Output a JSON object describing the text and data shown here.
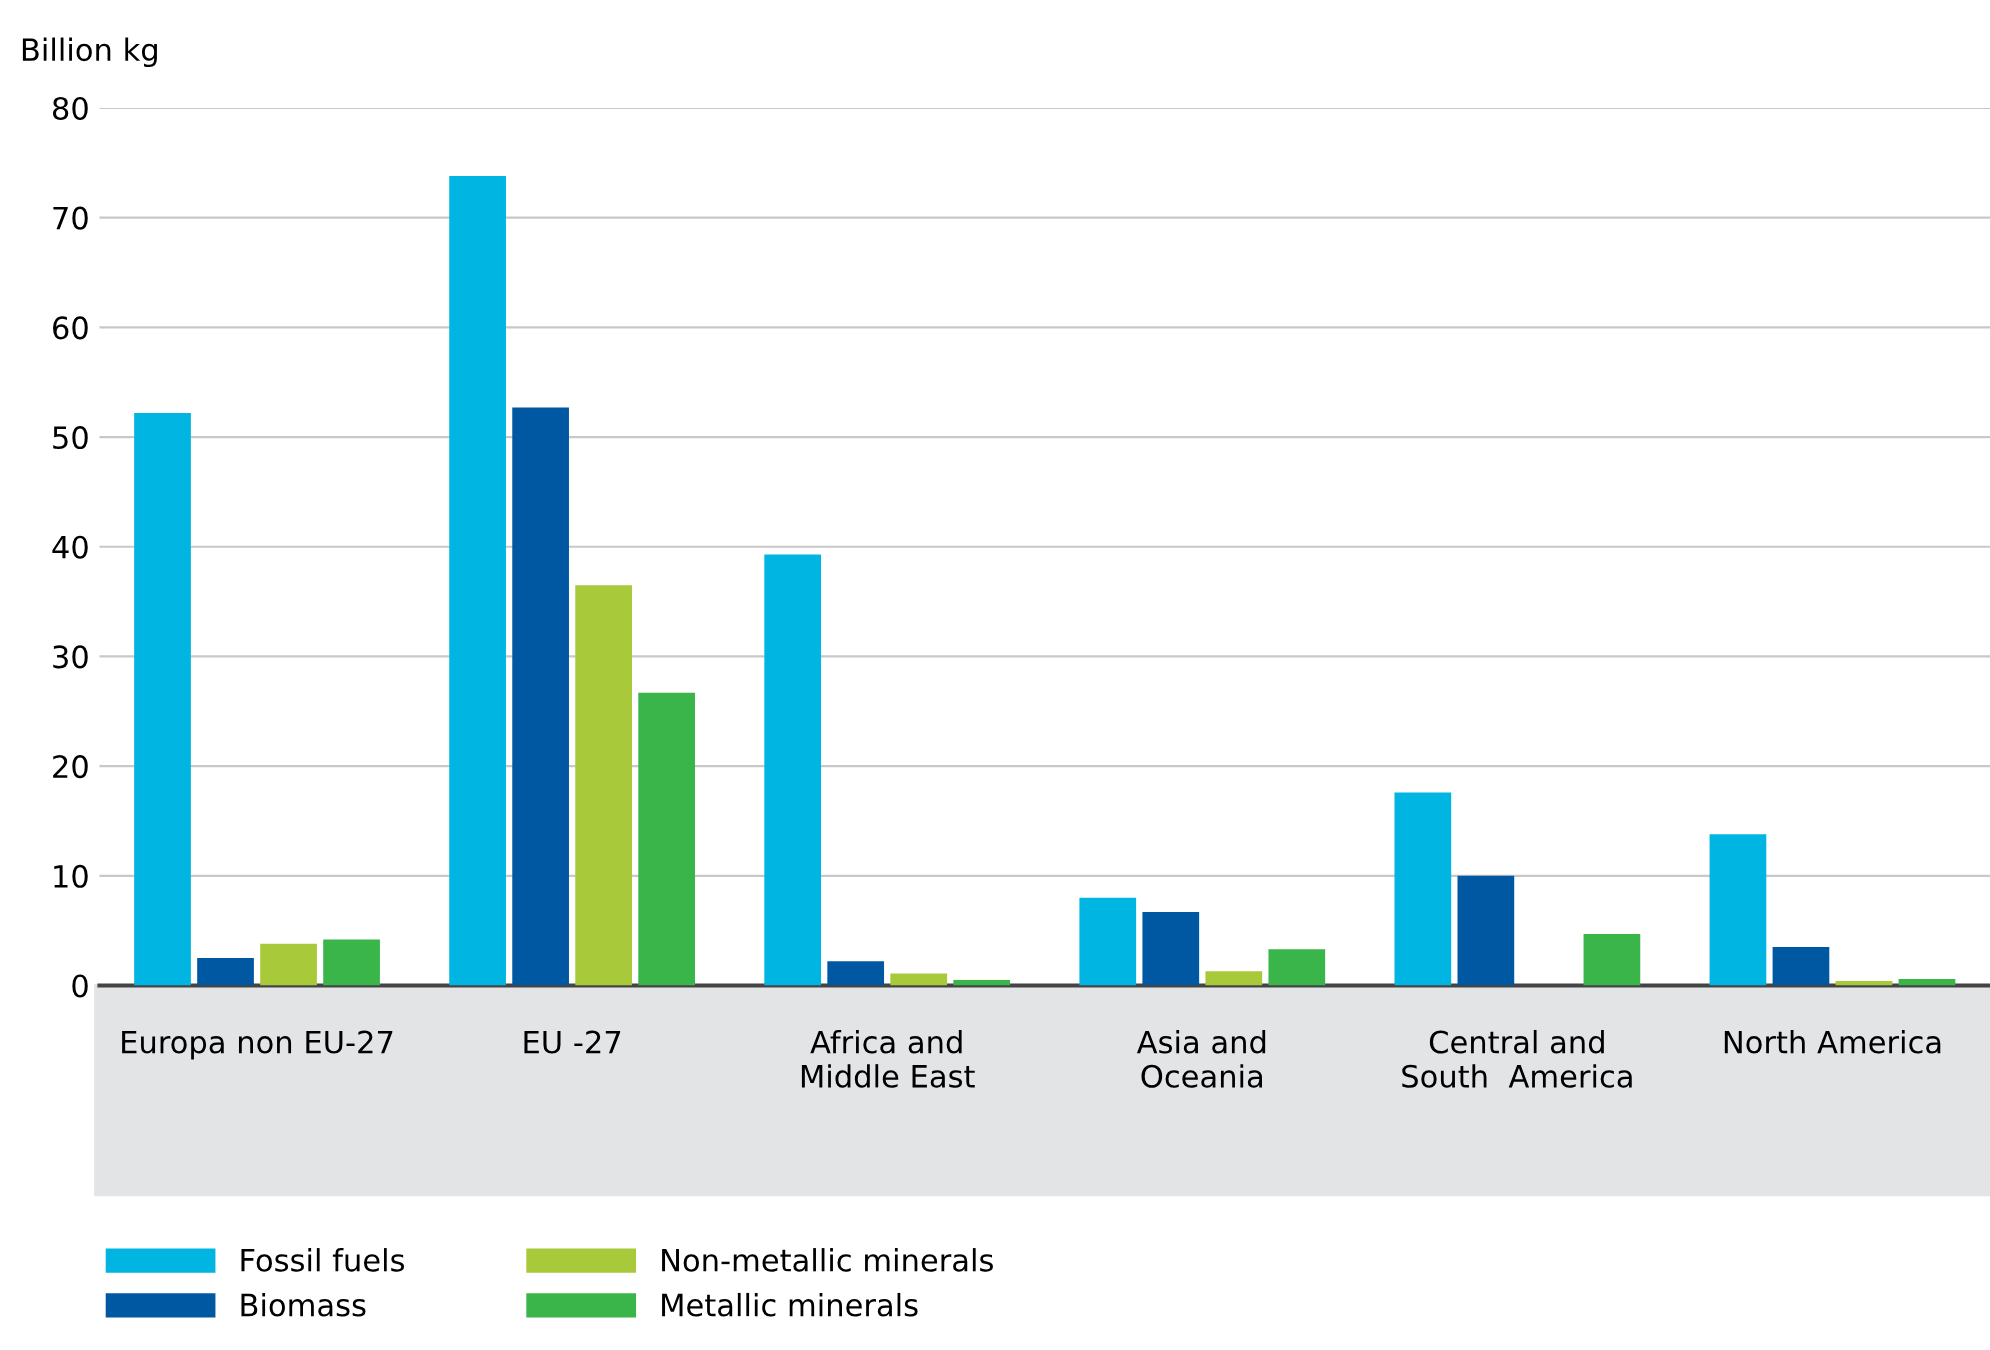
{
  "chart_data": {
    "type": "bar",
    "ylabel": "Billion kg",
    "categories": [
      "Europa non EU-27",
      "EU -27",
      "Africa and\nMiddle East",
      "Asia and\nOceania",
      "Central and\nSouth  America",
      "North America"
    ],
    "series": [
      {
        "name": "Fossil fuels",
        "color": "#00b5e2",
        "values": [
          52.2,
          73.8,
          39.3,
          8.0,
          17.6,
          13.8
        ]
      },
      {
        "name": "Biomass",
        "color": "#0058a3",
        "values": [
          2.5,
          52.7,
          2.2,
          6.7,
          10.0,
          3.5
        ]
      },
      {
        "name": "Non-metallic minerals",
        "color": "#a8c93a",
        "values": [
          3.8,
          36.5,
          1.1,
          1.3,
          0,
          0.4
        ]
      },
      {
        "name": "Metallic minerals",
        "color": "#3ab54a",
        "values": [
          4.2,
          26.7,
          0.5,
          3.3,
          4.7,
          0.6
        ]
      }
    ],
    "ylim": [
      0,
      80
    ],
    "yticks": [
      0,
      10,
      20,
      30,
      40,
      50,
      60,
      70,
      80
    ],
    "grid": "y",
    "legend": "bottom left"
  }
}
